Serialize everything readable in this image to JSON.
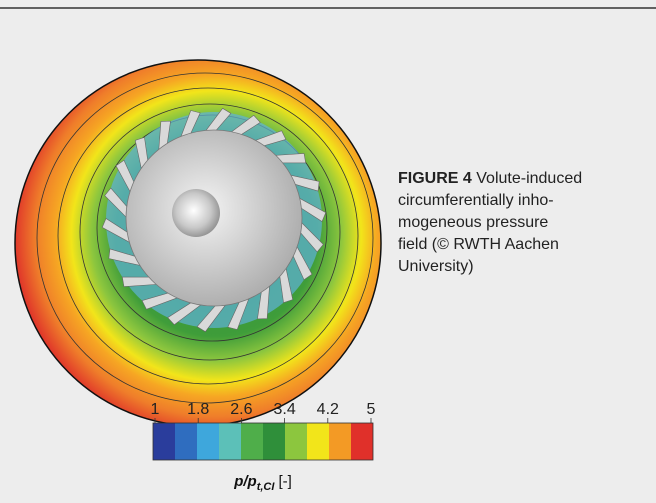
{
  "figure": {
    "caption_label": "FIGURE 4",
    "caption_lines": [
      "Volute-induced",
      "circumferentially inho-",
      "mogeneous pressure",
      "field (© RWTH Aachen",
      "University)"
    ],
    "colorbar": {
      "range": [
        1,
        5
      ],
      "ticks": [
        1,
        1.8,
        2.6,
        3.4,
        4.2,
        5
      ],
      "label_main": "p/p",
      "label_sub": "t,CI",
      "label_unit": "[-]"
    }
  }
}
